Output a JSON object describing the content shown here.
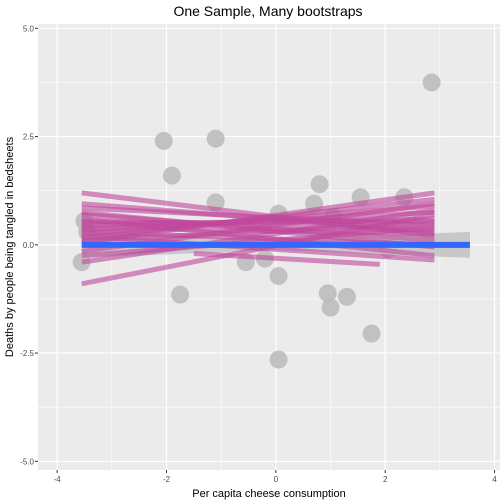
{
  "chart_data": {
    "type": "scatter",
    "title": "One Sample, Many bootstraps",
    "xlabel": "Per capita cheese consumption",
    "ylabel": "Deaths by people being tangled in bedsheets",
    "xlim": [
      -4.35,
      4.1
    ],
    "ylim": [
      -5.2,
      5.1
    ],
    "x_ticks": [
      -4,
      -2,
      0,
      2,
      4
    ],
    "x_tick_labels": [
      "-4",
      "-2",
      "0",
      "2",
      "4"
    ],
    "y_ticks": [
      -5,
      -2.5,
      0,
      2.5,
      5
    ],
    "y_tick_labels": [
      "-5.0",
      "-2.5",
      "0.0",
      "2.5",
      "5.0"
    ],
    "grid": true,
    "colors": {
      "panel": "#ebebeb",
      "grid_major": "#ffffff",
      "points": "#bdbdbd",
      "bootstrap_lines": "#c0479c",
      "fit_line": "#3366ff",
      "band": "#c2c2c2"
    },
    "points": [
      {
        "x": -3.55,
        "y": -0.4
      },
      {
        "x": -3.5,
        "y": 0.55
      },
      {
        "x": -3.45,
        "y": 0.3
      },
      {
        "x": -2.05,
        "y": 2.4
      },
      {
        "x": -1.9,
        "y": 1.6
      },
      {
        "x": -1.75,
        "y": -1.15
      },
      {
        "x": -1.1,
        "y": 2.45
      },
      {
        "x": -1.1,
        "y": 0.98
      },
      {
        "x": -0.55,
        "y": -0.4
      },
      {
        "x": -0.2,
        "y": -0.32
      },
      {
        "x": 0.05,
        "y": 0.72
      },
      {
        "x": 0.05,
        "y": -0.72
      },
      {
        "x": 0.05,
        "y": -2.65
      },
      {
        "x": 0.7,
        "y": 0.95
      },
      {
        "x": 0.8,
        "y": 1.4
      },
      {
        "x": 0.95,
        "y": -1.12
      },
      {
        "x": 1.0,
        "y": -1.45
      },
      {
        "x": 1.05,
        "y": 0.65
      },
      {
        "x": 1.3,
        "y": -1.2
      },
      {
        "x": 1.55,
        "y": 1.1
      },
      {
        "x": 1.75,
        "y": -2.05
      },
      {
        "x": 2.05,
        "y": -0.1
      },
      {
        "x": 2.35,
        "y": 1.1
      },
      {
        "x": 2.85,
        "y": 3.75
      }
    ],
    "bootstrap_lines": [
      {
        "x0": -3.55,
        "y0": 1.2,
        "x1": 2.9,
        "y1": 0.2
      },
      {
        "x0": -3.55,
        "y0": 0.85,
        "x1": 2.9,
        "y1": 0.45
      },
      {
        "x0": -3.55,
        "y0": 0.7,
        "x1": 2.9,
        "y1": 0.1
      },
      {
        "x0": -3.55,
        "y0": 0.55,
        "x1": 2.9,
        "y1": 0.35
      },
      {
        "x0": -3.55,
        "y0": 0.45,
        "x1": 2.9,
        "y1": 0.6
      },
      {
        "x0": -3.55,
        "y0": 0.35,
        "x1": 2.9,
        "y1": 0.75
      },
      {
        "x0": -3.55,
        "y0": 0.25,
        "x1": 2.9,
        "y1": 0.9
      },
      {
        "x0": -3.55,
        "y0": 0.15,
        "x1": 2.9,
        "y1": 1.05
      },
      {
        "x0": -3.55,
        "y0": 0.05,
        "x1": 2.9,
        "y1": 1.2
      },
      {
        "x0": -3.55,
        "y0": -0.15,
        "x1": 2.9,
        "y1": 0.95
      },
      {
        "x0": -3.55,
        "y0": -0.4,
        "x1": 2.9,
        "y1": 0.8
      },
      {
        "x0": -3.55,
        "y0": -0.9,
        "x1": 2.9,
        "y1": 0.7
      },
      {
        "x0": -3.55,
        "y0": 0.6,
        "x1": 2.9,
        "y1": -0.25
      },
      {
        "x0": -3.55,
        "y0": 0.75,
        "x1": 2.9,
        "y1": -0.05
      },
      {
        "x0": -3.55,
        "y0": 0.4,
        "x1": 2.9,
        "y1": 0.25
      },
      {
        "x0": -3.55,
        "y0": 0.1,
        "x1": 2.9,
        "y1": 0.5
      },
      {
        "x0": -3.55,
        "y0": 0.95,
        "x1": 2.9,
        "y1": 0.3
      },
      {
        "x0": -3.55,
        "y0": -0.25,
        "x1": 2.9,
        "y1": 0.4
      },
      {
        "x0": -3.55,
        "y0": 0.3,
        "x1": 2.9,
        "y1": 0.0
      },
      {
        "x0": -3.55,
        "y0": 0.5,
        "x1": 2.9,
        "y1": 0.55
      },
      {
        "x0": -1.5,
        "y0": -0.2,
        "x1": 1.9,
        "y1": -0.45
      },
      {
        "x0": -3.55,
        "y0": 0.2,
        "x1": 2.9,
        "y1": -0.35
      }
    ],
    "fit_line": {
      "x0": -3.55,
      "y0": 0.0,
      "x1": 3.55,
      "y1": 0.0
    },
    "band": {
      "x": [
        -3.55,
        0.0,
        3.55
      ],
      "upper": [
        0.3,
        0.12,
        0.3
      ],
      "lower": [
        -0.3,
        -0.12,
        -0.3
      ]
    }
  }
}
